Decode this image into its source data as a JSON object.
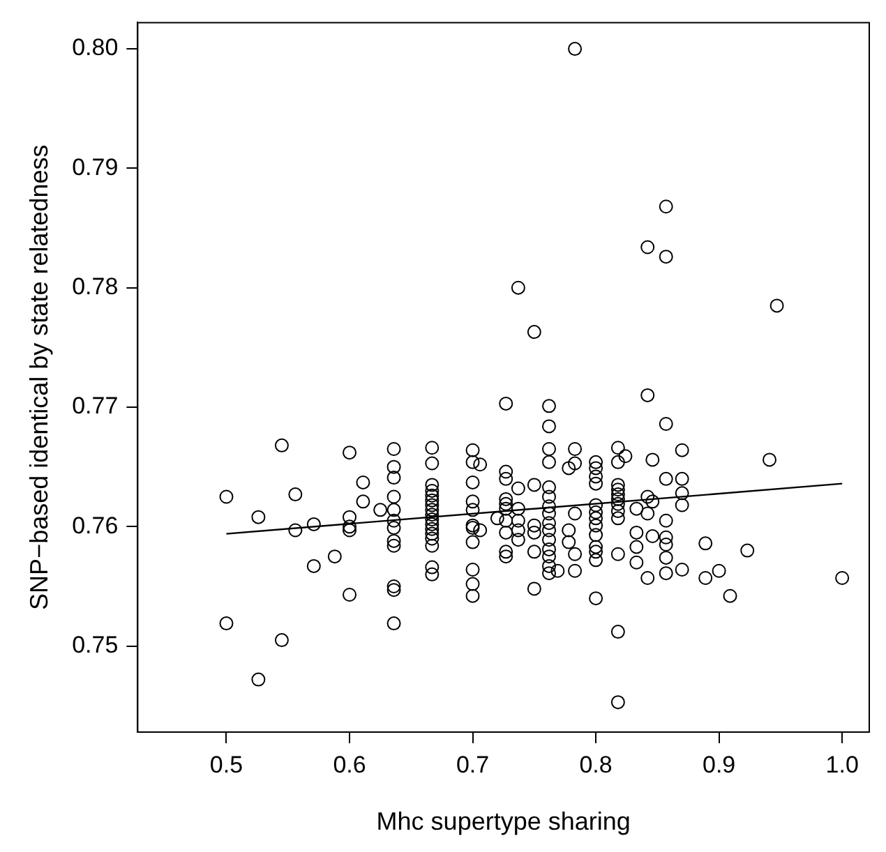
{
  "chart_data": {
    "type": "scatter",
    "xlabel": "Mhc supertype sharing",
    "ylabel": "SNP−based identical by state relatedness",
    "xlim": [
      0.428,
      1.022
    ],
    "ylim": [
      0.7428,
      0.8022
    ],
    "xticks": [
      {
        "value": 0.5,
        "label": "0.5"
      },
      {
        "value": 0.6,
        "label": "0.6"
      },
      {
        "value": 0.7,
        "label": "0.7"
      },
      {
        "value": 0.8,
        "label": "0.8"
      },
      {
        "value": 0.9,
        "label": "0.9"
      },
      {
        "value": 1,
        "label": "1.0"
      }
    ],
    "yticks": [
      0.75,
      0.76,
      0.77,
      0.78,
      0.79,
      {
        "value": 0.8,
        "label": "0.80"
      }
    ],
    "series": [
      {
        "type": "scatter",
        "color": "#000000",
        "marker": "circle",
        "x": [
          0.5,
          0.5,
          0.526,
          0.526,
          0.545,
          0.545,
          0.556,
          0.556,
          0.571,
          0.571,
          0.588,
          0.6,
          0.6,
          0.6,
          0.6,
          0.6,
          0.611,
          0.611,
          0.625,
          0.636,
          0.636,
          0.636,
          0.636,
          0.636,
          0.636,
          0.636,
          0.636,
          0.636,
          0.636,
          0.636,
          0.636,
          0.667,
          0.667,
          0.667,
          0.667,
          0.667,
          0.667,
          0.667,
          0.667,
          0.667,
          0.667,
          0.667,
          0.667,
          0.667,
          0.667,
          0.667,
          0.667,
          0.667,
          0.7,
          0.7,
          0.7,
          0.7,
          0.7,
          0.7,
          0.7,
          0.7,
          0.7,
          0.7,
          0.7,
          0.706,
          0.706,
          0.72,
          0.727,
          0.727,
          0.727,
          0.727,
          0.727,
          0.727,
          0.727,
          0.727,
          0.727,
          0.727,
          0.737,
          0.737,
          0.737,
          0.737,
          0.737,
          0.737,
          0.75,
          0.75,
          0.75,
          0.75,
          0.75,
          0.75,
          0.762,
          0.762,
          0.762,
          0.762,
          0.762,
          0.762,
          0.762,
          0.762,
          0.762,
          0.762,
          0.762,
          0.762,
          0.762,
          0.762,
          0.762,
          0.769,
          0.778,
          0.778,
          0.778,
          0.783,
          0.783,
          0.783,
          0.783,
          0.783,
          0.783,
          0.8,
          0.8,
          0.8,
          0.8,
          0.8,
          0.8,
          0.8,
          0.8,
          0.8,
          0.8,
          0.8,
          0.8,
          0.8,
          0.818,
          0.818,
          0.818,
          0.818,
          0.818,
          0.818,
          0.818,
          0.818,
          0.818,
          0.818,
          0.818,
          0.818,
          0.824,
          0.833,
          0.833,
          0.833,
          0.833,
          0.842,
          0.842,
          0.842,
          0.842,
          0.842,
          0.846,
          0.846,
          0.846,
          0.857,
          0.857,
          0.857,
          0.857,
          0.857,
          0.857,
          0.857,
          0.857,
          0.857,
          0.87,
          0.87,
          0.87,
          0.87,
          0.87,
          0.889,
          0.889,
          0.9,
          0.909,
          0.923,
          0.941,
          0.947,
          1.0
        ],
        "values": [
          0.7625,
          0.7519,
          0.7472,
          0.7608,
          0.7668,
          0.7505,
          0.7627,
          0.7597,
          0.7602,
          0.7567,
          0.7575,
          0.7662,
          0.7608,
          0.76,
          0.7597,
          0.7543,
          0.7637,
          0.7621,
          0.7614,
          0.7665,
          0.765,
          0.7641,
          0.7625,
          0.7614,
          0.7605,
          0.7599,
          0.7588,
          0.7584,
          0.755,
          0.7547,
          0.7519,
          0.7666,
          0.7653,
          0.7635,
          0.763,
          0.7626,
          0.7622,
          0.7618,
          0.7614,
          0.761,
          0.7606,
          0.7602,
          0.7598,
          0.7594,
          0.759,
          0.7584,
          0.7566,
          0.756,
          0.7664,
          0.7654,
          0.7637,
          0.7621,
          0.7614,
          0.7601,
          0.7599,
          0.7587,
          0.7564,
          0.7552,
          0.7542,
          0.7652,
          0.7597,
          0.7607,
          0.7703,
          0.7646,
          0.764,
          0.7623,
          0.7619,
          0.7615,
          0.7605,
          0.7595,
          0.7579,
          0.7575,
          0.78,
          0.7632,
          0.7615,
          0.7605,
          0.7597,
          0.7589,
          0.7763,
          0.7635,
          0.7601,
          0.7595,
          0.7579,
          0.7548,
          0.7701,
          0.7684,
          0.7665,
          0.7654,
          0.7633,
          0.7625,
          0.7617,
          0.7611,
          0.7603,
          0.7597,
          0.7589,
          0.7581,
          0.7575,
          0.7567,
          0.7561,
          0.7563,
          0.7649,
          0.7597,
          0.7587,
          0.8,
          0.7665,
          0.7653,
          0.7611,
          0.7577,
          0.7563,
          0.7654,
          0.7649,
          0.7642,
          0.7636,
          0.7618,
          0.7612,
          0.7607,
          0.7601,
          0.7593,
          0.7583,
          0.7579,
          0.7572,
          0.754,
          0.7666,
          0.7654,
          0.7635,
          0.7631,
          0.7627,
          0.7623,
          0.7619,
          0.7613,
          0.7607,
          0.7577,
          0.7512,
          0.7453,
          0.7659,
          0.7615,
          0.7595,
          0.7583,
          0.757,
          0.7834,
          0.771,
          0.7625,
          0.7611,
          0.7557,
          0.7656,
          0.7621,
          0.7592,
          0.7868,
          0.7826,
          0.7686,
          0.764,
          0.7605,
          0.7591,
          0.7585,
          0.7574,
          0.7561,
          0.7664,
          0.764,
          0.7628,
          0.7618,
          0.7564,
          0.7586,
          0.7557,
          0.7563,
          0.7542,
          0.758,
          0.7656,
          0.7785,
          0.7557
        ]
      },
      {
        "type": "line",
        "color": "#000000",
        "marker": "none",
        "line_style": "solid",
        "x": [
          0.5,
          1.0
        ],
        "values": [
          0.7594,
          0.7636
        ]
      }
    ]
  }
}
